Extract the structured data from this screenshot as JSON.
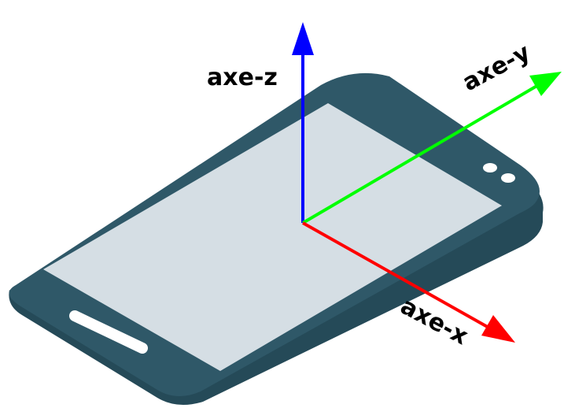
{
  "axes": {
    "z": {
      "label": "axe-z",
      "color": "#0000ff"
    },
    "y": {
      "label": "axe-y",
      "color": "#00ff00"
    },
    "x": {
      "label": "axe-x",
      "color": "#ff0000"
    }
  },
  "phone": {
    "body_color": "#2f5868",
    "body_shadow_color": "#254a58",
    "screen_color": "#d5dee4",
    "detail_color": "#ffffff"
  }
}
